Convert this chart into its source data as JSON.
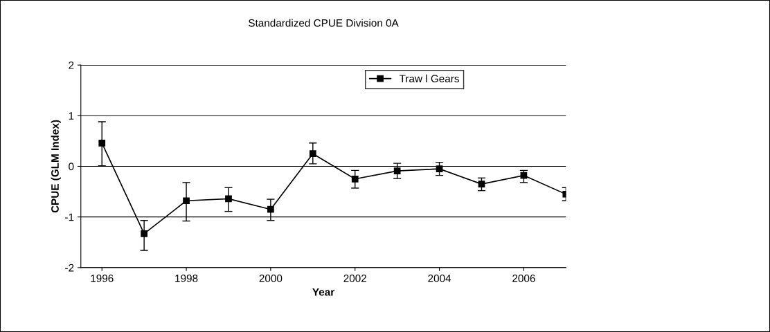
{
  "chart_data": {
    "type": "line",
    "title": "Standardized CPUE Division 0A",
    "xlabel": "Year",
    "ylabel": "CPUE (GLM Index)",
    "x": [
      1996,
      1997,
      1998,
      1999,
      2000,
      2001,
      2002,
      2003,
      2004,
      2005,
      2006,
      2007
    ],
    "series": [
      {
        "name": "Traw l Gears",
        "color": "#000000",
        "values": [
          0.46,
          -1.33,
          -0.68,
          -0.64,
          -0.85,
          0.25,
          -0.25,
          -0.09,
          -0.05,
          -0.35,
          -0.18,
          -0.55
        ],
        "errors": [
          [
            0.01,
            0.88
          ],
          [
            -1.66,
            -1.07
          ],
          [
            -1.08,
            -0.32
          ],
          [
            -0.89,
            -0.42
          ],
          [
            -1.07,
            -0.65
          ],
          [
            0.05,
            0.46
          ],
          [
            -0.43,
            -0.08
          ],
          [
            -0.24,
            0.06
          ],
          [
            -0.18,
            0.08
          ],
          [
            -0.48,
            -0.23
          ],
          [
            -0.32,
            -0.08
          ],
          [
            -0.68,
            -0.42
          ]
        ]
      }
    ],
    "xlim": [
      1995.5,
      2007
    ],
    "xticks": [
      1996,
      1998,
      2000,
      2002,
      2004,
      2006
    ],
    "ylim": [
      -2,
      2
    ],
    "yticks": [
      -2,
      -1,
      0,
      1,
      2
    ],
    "grid": "y",
    "legend": "top right",
    "marker": "square",
    "line_style": "solid"
  }
}
